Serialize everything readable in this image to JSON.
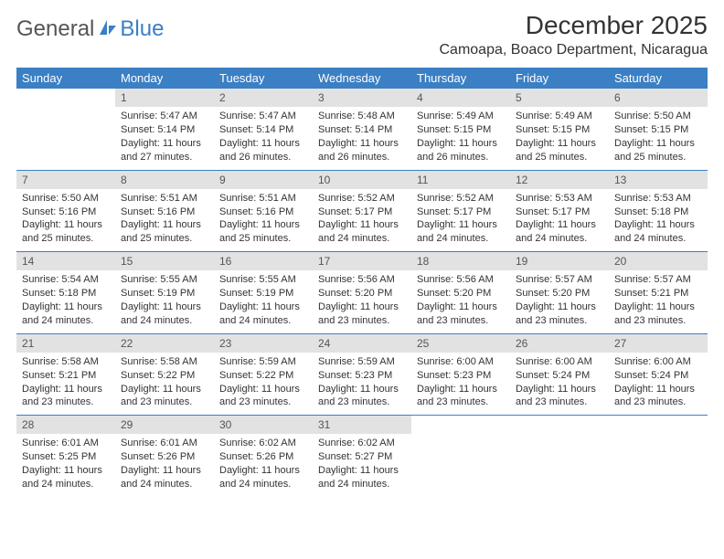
{
  "logo": {
    "text1": "General",
    "text2": "Blue"
  },
  "title": "December 2025",
  "location": "Camoapa, Boaco Department, Nicaragua",
  "colors": {
    "header_bg": "#3b7fc4",
    "header_text": "#ffffff",
    "daynum_bg": "#e2e2e2",
    "border": "#3b7fc4",
    "body_text": "#333333",
    "page_bg": "#ffffff"
  },
  "typography": {
    "title_fontsize": 28,
    "location_fontsize": 16,
    "header_fontsize": 13,
    "cell_fontsize": 11
  },
  "layout": {
    "columns": 7,
    "rows": 5,
    "first_day_offset": 1
  },
  "day_headers": [
    "Sunday",
    "Monday",
    "Tuesday",
    "Wednesday",
    "Thursday",
    "Friday",
    "Saturday"
  ],
  "days": [
    {
      "n": 1,
      "sr": "5:47 AM",
      "ss": "5:14 PM",
      "dl": "11 hours and 27 minutes."
    },
    {
      "n": 2,
      "sr": "5:47 AM",
      "ss": "5:14 PM",
      "dl": "11 hours and 26 minutes."
    },
    {
      "n": 3,
      "sr": "5:48 AM",
      "ss": "5:14 PM",
      "dl": "11 hours and 26 minutes."
    },
    {
      "n": 4,
      "sr": "5:49 AM",
      "ss": "5:15 PM",
      "dl": "11 hours and 26 minutes."
    },
    {
      "n": 5,
      "sr": "5:49 AM",
      "ss": "5:15 PM",
      "dl": "11 hours and 25 minutes."
    },
    {
      "n": 6,
      "sr": "5:50 AM",
      "ss": "5:15 PM",
      "dl": "11 hours and 25 minutes."
    },
    {
      "n": 7,
      "sr": "5:50 AM",
      "ss": "5:16 PM",
      "dl": "11 hours and 25 minutes."
    },
    {
      "n": 8,
      "sr": "5:51 AM",
      "ss": "5:16 PM",
      "dl": "11 hours and 25 minutes."
    },
    {
      "n": 9,
      "sr": "5:51 AM",
      "ss": "5:16 PM",
      "dl": "11 hours and 25 minutes."
    },
    {
      "n": 10,
      "sr": "5:52 AM",
      "ss": "5:17 PM",
      "dl": "11 hours and 24 minutes."
    },
    {
      "n": 11,
      "sr": "5:52 AM",
      "ss": "5:17 PM",
      "dl": "11 hours and 24 minutes."
    },
    {
      "n": 12,
      "sr": "5:53 AM",
      "ss": "5:17 PM",
      "dl": "11 hours and 24 minutes."
    },
    {
      "n": 13,
      "sr": "5:53 AM",
      "ss": "5:18 PM",
      "dl": "11 hours and 24 minutes."
    },
    {
      "n": 14,
      "sr": "5:54 AM",
      "ss": "5:18 PM",
      "dl": "11 hours and 24 minutes."
    },
    {
      "n": 15,
      "sr": "5:55 AM",
      "ss": "5:19 PM",
      "dl": "11 hours and 24 minutes."
    },
    {
      "n": 16,
      "sr": "5:55 AM",
      "ss": "5:19 PM",
      "dl": "11 hours and 24 minutes."
    },
    {
      "n": 17,
      "sr": "5:56 AM",
      "ss": "5:20 PM",
      "dl": "11 hours and 23 minutes."
    },
    {
      "n": 18,
      "sr": "5:56 AM",
      "ss": "5:20 PM",
      "dl": "11 hours and 23 minutes."
    },
    {
      "n": 19,
      "sr": "5:57 AM",
      "ss": "5:20 PM",
      "dl": "11 hours and 23 minutes."
    },
    {
      "n": 20,
      "sr": "5:57 AM",
      "ss": "5:21 PM",
      "dl": "11 hours and 23 minutes."
    },
    {
      "n": 21,
      "sr": "5:58 AM",
      "ss": "5:21 PM",
      "dl": "11 hours and 23 minutes."
    },
    {
      "n": 22,
      "sr": "5:58 AM",
      "ss": "5:22 PM",
      "dl": "11 hours and 23 minutes."
    },
    {
      "n": 23,
      "sr": "5:59 AM",
      "ss": "5:22 PM",
      "dl": "11 hours and 23 minutes."
    },
    {
      "n": 24,
      "sr": "5:59 AM",
      "ss": "5:23 PM",
      "dl": "11 hours and 23 minutes."
    },
    {
      "n": 25,
      "sr": "6:00 AM",
      "ss": "5:23 PM",
      "dl": "11 hours and 23 minutes."
    },
    {
      "n": 26,
      "sr": "6:00 AM",
      "ss": "5:24 PM",
      "dl": "11 hours and 23 minutes."
    },
    {
      "n": 27,
      "sr": "6:00 AM",
      "ss": "5:24 PM",
      "dl": "11 hours and 23 minutes."
    },
    {
      "n": 28,
      "sr": "6:01 AM",
      "ss": "5:25 PM",
      "dl": "11 hours and 24 minutes."
    },
    {
      "n": 29,
      "sr": "6:01 AM",
      "ss": "5:26 PM",
      "dl": "11 hours and 24 minutes."
    },
    {
      "n": 30,
      "sr": "6:02 AM",
      "ss": "5:26 PM",
      "dl": "11 hours and 24 minutes."
    },
    {
      "n": 31,
      "sr": "6:02 AM",
      "ss": "5:27 PM",
      "dl": "11 hours and 24 minutes."
    }
  ],
  "labels": {
    "sunrise": "Sunrise:",
    "sunset": "Sunset:",
    "daylight": "Daylight:"
  }
}
